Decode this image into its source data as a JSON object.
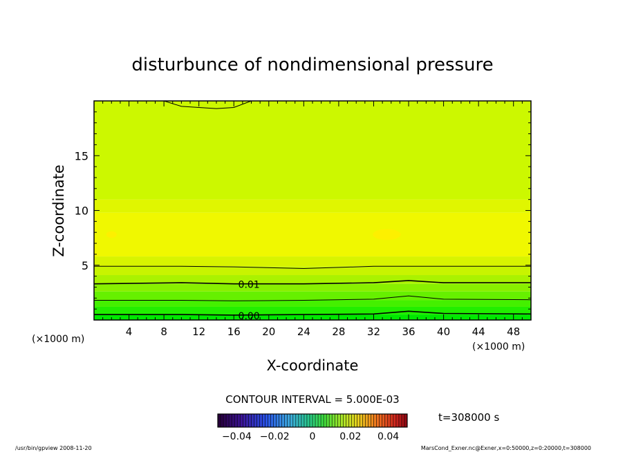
{
  "chart_data": {
    "type": "heatmap",
    "title": "disturbunce of nondimensional pressure",
    "xlabel": "X-coordinate",
    "ylabel": "Z-coordinate",
    "x_unit_left": "(×1000 m)",
    "x_unit_right": "(×1000 m)",
    "xlim": [
      0,
      50
    ],
    "ylim": [
      0,
      20
    ],
    "x_ticks": [
      4,
      8,
      12,
      16,
      20,
      24,
      28,
      32,
      36,
      40,
      44,
      48
    ],
    "y_ticks": [
      5,
      10,
      15
    ],
    "contour_interval_text": "CONTOUR INTERVAL = 5.000E-03",
    "time_text": "t=308000 s",
    "colorbar": {
      "ticks": [
        -0.04,
        -0.02,
        0,
        0.02,
        0.04
      ],
      "tick_labels": [
        "−0.04",
        "−0.02",
        "0",
        "0.02",
        "0.04"
      ],
      "range": [
        -0.05,
        0.05
      ]
    },
    "contour_labels": [
      {
        "text": "0.01",
        "x": 16.5,
        "z": 3.3
      },
      {
        "text": "0.00",
        "x": 16.5,
        "z": 0.45
      }
    ],
    "contour_lines": [
      {
        "value": 0.0,
        "points": [
          [
            0,
            0.5
          ],
          [
            10,
            0.5
          ],
          [
            16,
            0.45
          ],
          [
            24,
            0.5
          ],
          [
            32,
            0.55
          ],
          [
            36,
            0.8
          ],
          [
            40,
            0.6
          ],
          [
            50,
            0.55
          ]
        ]
      },
      {
        "value": 0.005,
        "points": [
          [
            0,
            1.8
          ],
          [
            10,
            1.8
          ],
          [
            16,
            1.75
          ],
          [
            24,
            1.8
          ],
          [
            32,
            1.9
          ],
          [
            36,
            2.2
          ],
          [
            40,
            1.9
          ],
          [
            50,
            1.85
          ]
        ]
      },
      {
        "value": 0.01,
        "points": [
          [
            0,
            3.3
          ],
          [
            10,
            3.4
          ],
          [
            16,
            3.3
          ],
          [
            24,
            3.3
          ],
          [
            32,
            3.4
          ],
          [
            36,
            3.6
          ],
          [
            40,
            3.4
          ],
          [
            50,
            3.4
          ]
        ]
      },
      {
        "value": 0.015,
        "points": [
          [
            0,
            4.9
          ],
          [
            10,
            4.9
          ],
          [
            16,
            4.85
          ],
          [
            24,
            4.7
          ],
          [
            32,
            4.9
          ],
          [
            40,
            4.9
          ],
          [
            50,
            4.9
          ]
        ]
      },
      {
        "value": 0.015,
        "points": [
          [
            8,
            20
          ],
          [
            10,
            19.5
          ],
          [
            14,
            19.3
          ],
          [
            16,
            19.4
          ],
          [
            18,
            20
          ]
        ]
      }
    ],
    "bands": [
      {
        "z": [
          0,
          0.5
        ],
        "color": "#00e800"
      },
      {
        "z": [
          0.5,
          1.2
        ],
        "color": "#22ee00"
      },
      {
        "z": [
          1.2,
          1.8
        ],
        "color": "#44f000"
      },
      {
        "z": [
          1.8,
          2.6
        ],
        "color": "#66f000"
      },
      {
        "z": [
          2.6,
          3.3
        ],
        "color": "#88f000"
      },
      {
        "z": [
          3.3,
          4.1
        ],
        "color": "#aaf200"
      },
      {
        "z": [
          4.1,
          4.9
        ],
        "color": "#c8f400"
      },
      {
        "z": [
          4.9,
          5.8
        ],
        "color": "#d8f400"
      },
      {
        "z": [
          5.8,
          9.8
        ],
        "color": "#f0f800"
      },
      {
        "z": [
          9.8,
          11.0
        ],
        "color": "#e0f600"
      },
      {
        "z": [
          11.0,
          20
        ],
        "color": "#ccf800"
      }
    ],
    "highlights": [
      {
        "x": 33.5,
        "z": 7.8,
        "rx": 1.6,
        "rz": 0.5,
        "color": "#ffee00"
      },
      {
        "x": 2.0,
        "z": 7.8,
        "rx": 0.6,
        "rz": 0.3,
        "color": "#ffee00"
      }
    ]
  },
  "footer": {
    "left": "/usr/bin/gpview  2008-11-20",
    "right": "MarsCond_Exner.nc@Exner,x=0:50000,z=0:20000,t=308000"
  }
}
